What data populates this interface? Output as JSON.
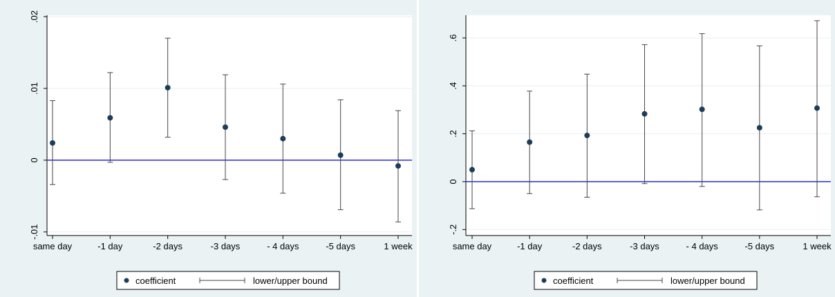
{
  "chart_data": [
    {
      "type": "scatter",
      "subtype": "point-with-error-bars",
      "categories": [
        "same day",
        "-1 day",
        "-2 days",
        "-3 days",
        "- 4 days",
        "-5 days",
        "1 week"
      ],
      "series": [
        {
          "name": "coefficient",
          "values": [
            0.0024,
            0.0059,
            0.0101,
            0.0046,
            0.003,
            0.0007,
            -0.0008
          ]
        },
        {
          "name": "lower/upper bound",
          "lower": [
            -0.0034,
            -0.0003,
            0.0032,
            -0.0027,
            -0.0046,
            -0.0069,
            -0.0086
          ],
          "upper": [
            0.0083,
            0.0122,
            0.017,
            0.0119,
            0.0106,
            0.0084,
            0.0069
          ]
        }
      ],
      "yticks": [
        -0.01,
        0,
        0.01,
        0.02
      ],
      "ytick_labels": [
        "-.01",
        "0",
        ".01",
        ".02"
      ],
      "ylim": [
        -0.0105,
        0.0202
      ],
      "reference_line": {
        "y": 0,
        "color": "#2a2ad0"
      },
      "grid": true,
      "legend_position": "bottom",
      "marker_color": "#1c3d5a",
      "errorbar_color": "#444444"
    },
    {
      "type": "scatter",
      "subtype": "point-with-error-bars",
      "categories": [
        "same day",
        "-1 day",
        "-2 days",
        "-3 days",
        "- 4 days",
        "-5 days",
        "1 week"
      ],
      "series": [
        {
          "name": "coefficient",
          "values": [
            0.05,
            0.165,
            0.193,
            0.283,
            0.302,
            0.225,
            0.307
          ]
        },
        {
          "name": "lower/upper bound",
          "lower": [
            -0.113,
            -0.05,
            -0.065,
            -0.008,
            -0.02,
            -0.118,
            -0.063
          ],
          "upper": [
            0.212,
            0.378,
            0.449,
            0.572,
            0.618,
            0.567,
            0.672
          ]
        }
      ],
      "yticks": [
        -0.2,
        0,
        0.2,
        0.4,
        0.6
      ],
      "ytick_labels": [
        "-.2",
        "0",
        ".2",
        ".4",
        ".6"
      ],
      "ylim": [
        -0.225,
        0.695
      ],
      "reference_line": {
        "y": 0,
        "color": "#2a2ad0"
      },
      "grid": true,
      "legend_position": "bottom",
      "marker_color": "#1c3d5a",
      "errorbar_color": "#444444"
    }
  ],
  "legend": {
    "marker_label": "coefficient",
    "bar_label": "lower/upper bound"
  }
}
